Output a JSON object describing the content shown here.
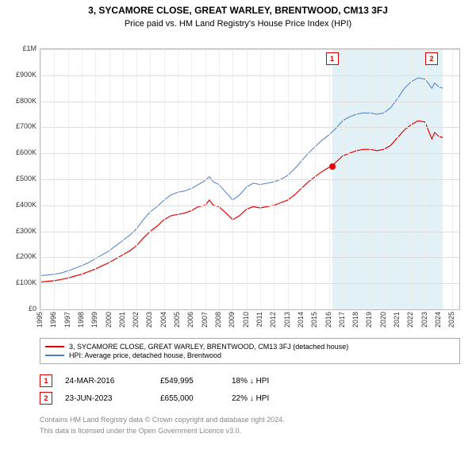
{
  "title": "3, SYCAMORE CLOSE, GREAT WARLEY, BRENTWOOD, CM13 3FJ",
  "subtitle": "Price paid vs. HM Land Registry's House Price Index (HPI)",
  "chart": {
    "type": "line",
    "xlim": [
      1995,
      2025.5
    ],
    "ylim": [
      0,
      1000000
    ],
    "ytick_step": 100000,
    "ytick_prefix": "£",
    "yticks": [
      "£0",
      "£100K",
      "£200K",
      "£300K",
      "£400K",
      "£500K",
      "£600K",
      "£700K",
      "£800K",
      "£900K",
      "£1M"
    ],
    "xticks": [
      1995,
      1996,
      1997,
      1998,
      1999,
      2000,
      2001,
      2002,
      2003,
      2004,
      2005,
      2006,
      2007,
      2008,
      2009,
      2010,
      2011,
      2012,
      2013,
      2014,
      2015,
      2016,
      2017,
      2018,
      2019,
      2020,
      2021,
      2022,
      2023,
      2024,
      2025
    ],
    "background_color": "#ffffff",
    "grid_color": "#dddddd",
    "series": [
      {
        "name": "property",
        "color": "#e60000",
        "width": 1.2,
        "legend": "3, SYCAMORE CLOSE, GREAT WARLEY, BRENTWOOD, CM13 3FJ (detached house)",
        "data": [
          [
            1995,
            105000
          ],
          [
            1995.5,
            108000
          ],
          [
            1996,
            110000
          ],
          [
            1996.5,
            115000
          ],
          [
            1997,
            120000
          ],
          [
            1997.5,
            128000
          ],
          [
            1998,
            135000
          ],
          [
            1998.5,
            145000
          ],
          [
            1999,
            155000
          ],
          [
            1999.5,
            168000
          ],
          [
            2000,
            180000
          ],
          [
            2000.5,
            195000
          ],
          [
            2001,
            210000
          ],
          [
            2001.5,
            225000
          ],
          [
            2002,
            245000
          ],
          [
            2002.5,
            275000
          ],
          [
            2003,
            300000
          ],
          [
            2003.5,
            320000
          ],
          [
            2004,
            345000
          ],
          [
            2004.5,
            360000
          ],
          [
            2005,
            365000
          ],
          [
            2005.5,
            370000
          ],
          [
            2006,
            380000
          ],
          [
            2006.5,
            395000
          ],
          [
            2007,
            400000
          ],
          [
            2007.3,
            420000
          ],
          [
            2007.6,
            400000
          ],
          [
            2008,
            395000
          ],
          [
            2008.5,
            370000
          ],
          [
            2009,
            345000
          ],
          [
            2009.5,
            360000
          ],
          [
            2010,
            385000
          ],
          [
            2010.5,
            395000
          ],
          [
            2011,
            390000
          ],
          [
            2011.5,
            395000
          ],
          [
            2012,
            400000
          ],
          [
            2012.5,
            410000
          ],
          [
            2013,
            420000
          ],
          [
            2013.5,
            440000
          ],
          [
            2014,
            465000
          ],
          [
            2014.5,
            490000
          ],
          [
            2015,
            510000
          ],
          [
            2015.5,
            530000
          ],
          [
            2016,
            545000
          ],
          [
            2016.2,
            549995
          ],
          [
            2016.5,
            565000
          ],
          [
            2017,
            590000
          ],
          [
            2017.5,
            600000
          ],
          [
            2018,
            610000
          ],
          [
            2018.5,
            615000
          ],
          [
            2019,
            615000
          ],
          [
            2019.5,
            610000
          ],
          [
            2020,
            615000
          ],
          [
            2020.5,
            630000
          ],
          [
            2021,
            660000
          ],
          [
            2021.5,
            690000
          ],
          [
            2022,
            710000
          ],
          [
            2022.5,
            725000
          ],
          [
            2023,
            720000
          ],
          [
            2023.5,
            655000
          ],
          [
            2023.7,
            680000
          ],
          [
            2024,
            665000
          ],
          [
            2024.3,
            660000
          ]
        ]
      },
      {
        "name": "hpi",
        "color": "#4a7ec8",
        "width": 1.0,
        "legend": "HPI: Average price, detached house, Brentwood",
        "data": [
          [
            1995,
            130000
          ],
          [
            1995.5,
            132000
          ],
          [
            1996,
            135000
          ],
          [
            1996.5,
            140000
          ],
          [
            1997,
            148000
          ],
          [
            1997.5,
            158000
          ],
          [
            1998,
            168000
          ],
          [
            1998.5,
            180000
          ],
          [
            1999,
            195000
          ],
          [
            1999.5,
            210000
          ],
          [
            2000,
            225000
          ],
          [
            2000.5,
            245000
          ],
          [
            2001,
            265000
          ],
          [
            2001.5,
            285000
          ],
          [
            2002,
            310000
          ],
          [
            2002.5,
            345000
          ],
          [
            2003,
            375000
          ],
          [
            2003.5,
            395000
          ],
          [
            2004,
            420000
          ],
          [
            2004.5,
            440000
          ],
          [
            2005,
            450000
          ],
          [
            2005.5,
            455000
          ],
          [
            2006,
            465000
          ],
          [
            2006.5,
            480000
          ],
          [
            2007,
            495000
          ],
          [
            2007.3,
            510000
          ],
          [
            2007.6,
            490000
          ],
          [
            2008,
            480000
          ],
          [
            2008.5,
            450000
          ],
          [
            2009,
            420000
          ],
          [
            2009.5,
            440000
          ],
          [
            2010,
            470000
          ],
          [
            2010.5,
            485000
          ],
          [
            2011,
            480000
          ],
          [
            2011.5,
            485000
          ],
          [
            2012,
            490000
          ],
          [
            2012.5,
            500000
          ],
          [
            2013,
            515000
          ],
          [
            2013.5,
            540000
          ],
          [
            2014,
            570000
          ],
          [
            2014.5,
            600000
          ],
          [
            2015,
            625000
          ],
          [
            2015.5,
            650000
          ],
          [
            2016,
            670000
          ],
          [
            2016.5,
            695000
          ],
          [
            2017,
            725000
          ],
          [
            2017.5,
            740000
          ],
          [
            2018,
            750000
          ],
          [
            2018.5,
            755000
          ],
          [
            2019,
            755000
          ],
          [
            2019.5,
            750000
          ],
          [
            2020,
            755000
          ],
          [
            2020.5,
            775000
          ],
          [
            2021,
            810000
          ],
          [
            2021.5,
            850000
          ],
          [
            2022,
            875000
          ],
          [
            2022.5,
            890000
          ],
          [
            2023,
            885000
          ],
          [
            2023.5,
            850000
          ],
          [
            2023.7,
            870000
          ],
          [
            2024,
            855000
          ],
          [
            2024.3,
            850000
          ]
        ]
      }
    ],
    "flags": [
      {
        "n": "1",
        "x": 2016.23,
        "band_to": 2023.48
      },
      {
        "n": "2",
        "x": 2023.48,
        "band_to": 2024.3
      }
    ],
    "sale_markers": [
      {
        "x": 2016.23,
        "y": 549995,
        "color": "#e60000"
      }
    ]
  },
  "sales": [
    {
      "flag": "1",
      "date": "24-MAR-2016",
      "price": "£549,995",
      "diff": "18%  ↓ HPI"
    },
    {
      "flag": "2",
      "date": "23-JUN-2023",
      "price": "£655,000",
      "diff": "22%  ↓ HPI"
    }
  ],
  "footer_l1": "Contains HM Land Registry data © Crown copyright and database right 2024.",
  "footer_l2": "This data is licensed under the Open Government Licence v3.0."
}
